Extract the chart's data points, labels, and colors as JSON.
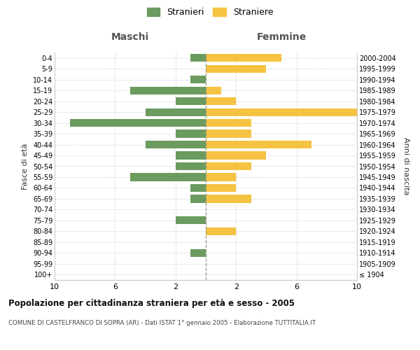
{
  "age_groups": [
    "100+",
    "95-99",
    "90-94",
    "85-89",
    "80-84",
    "75-79",
    "70-74",
    "65-69",
    "60-64",
    "55-59",
    "50-54",
    "45-49",
    "40-44",
    "35-39",
    "30-34",
    "25-29",
    "20-24",
    "15-19",
    "10-14",
    "5-9",
    "0-4"
  ],
  "birth_years": [
    "≤ 1904",
    "1905-1909",
    "1910-1914",
    "1915-1919",
    "1920-1924",
    "1925-1929",
    "1930-1934",
    "1935-1939",
    "1940-1944",
    "1945-1949",
    "1950-1954",
    "1955-1959",
    "1960-1964",
    "1965-1969",
    "1970-1974",
    "1975-1979",
    "1980-1984",
    "1985-1989",
    "1990-1994",
    "1995-1999",
    "2000-2004"
  ],
  "maschi": [
    0,
    0,
    1,
    0,
    0,
    2,
    0,
    1,
    1,
    5,
    2,
    2,
    4,
    2,
    9,
    4,
    2,
    5,
    1,
    0,
    1
  ],
  "femmine": [
    0,
    0,
    0,
    0,
    2,
    0,
    0,
    3,
    2,
    2,
    3,
    4,
    7,
    3,
    3,
    10,
    2,
    1,
    0,
    4,
    5
  ],
  "maschi_color": "#6b9b5e",
  "femmine_color": "#f5c242",
  "title": "Popolazione per cittadinanza straniera per età e sesso - 2005",
  "subtitle": "COMUNE DI CASTELFRANCO DI SOPRA (AR) - Dati ISTAT 1° gennaio 2005 - Elaborazione TUTTITALIA.IT",
  "legend_stranieri": "Stranieri",
  "legend_straniere": "Straniere",
  "xlabel_left": "Maschi",
  "xlabel_right": "Femmine",
  "ylabel_left": "Fasce di età",
  "ylabel_right": "Anni di nascita",
  "xlim": 10,
  "background_color": "#ffffff",
  "grid_color": "#cccccc"
}
